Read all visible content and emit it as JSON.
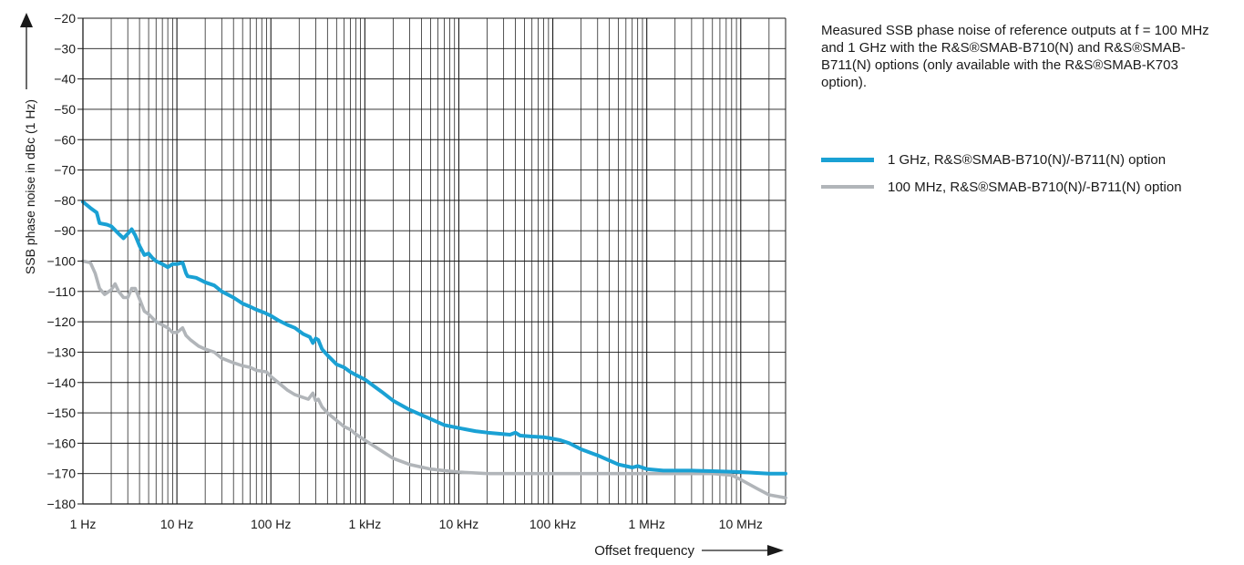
{
  "caption": "Measured SSB phase noise of reference outputs at f = 100 MHz and 1 GHz with the R&S®SMAB-B710(N) and R&S®SMAB-B711(N) options (only available with the R&S®SMAB-K703 option).",
  "chart_data": {
    "type": "line",
    "title": "",
    "xlabel": "Offset frequency",
    "ylabel": "SSB phase noise in dBc (1 Hz)",
    "x_scale": "log",
    "xlim": [
      1,
      30000000
    ],
    "ylim": [
      -180,
      -20
    ],
    "grid": true,
    "legend_position": "right",
    "x_ticks": [
      {
        "value": 1,
        "label": "1 Hz"
      },
      {
        "value": 10,
        "label": "10 Hz"
      },
      {
        "value": 100,
        "label": "100 Hz"
      },
      {
        "value": 1000,
        "label": "1 kHz"
      },
      {
        "value": 10000,
        "label": "10 kHz"
      },
      {
        "value": 100000,
        "label": "100 kHz"
      },
      {
        "value": 1000000,
        "label": "1 MHz"
      },
      {
        "value": 10000000,
        "label": "10 MHz"
      }
    ],
    "y_ticks": [
      {
        "value": -20,
        "label": "−20"
      },
      {
        "value": -30,
        "label": "−30"
      },
      {
        "value": -40,
        "label": "−40"
      },
      {
        "value": -50,
        "label": "−50"
      },
      {
        "value": -60,
        "label": "−60"
      },
      {
        "value": -70,
        "label": "−70"
      },
      {
        "value": -80,
        "label": "−80"
      },
      {
        "value": -90,
        "label": "−90"
      },
      {
        "value": -100,
        "label": "−100"
      },
      {
        "value": -110,
        "label": "−110"
      },
      {
        "value": -120,
        "label": "−120"
      },
      {
        "value": -130,
        "label": "−130"
      },
      {
        "value": -140,
        "label": "−140"
      },
      {
        "value": -150,
        "label": "−150"
      },
      {
        "value": -160,
        "label": "−160"
      },
      {
        "value": -170,
        "label": "−170"
      },
      {
        "value": -180,
        "label": "−180"
      }
    ],
    "series": [
      {
        "name": "1 GHz, R&S®SMAB-B710(N)/-B711(N) option",
        "color": "#1aa1d4",
        "x": [
          1,
          1.2,
          1.4,
          1.5,
          1.8,
          2,
          2.4,
          2.7,
          3,
          3.3,
          3.6,
          4,
          4.5,
          5,
          5.5,
          6,
          7,
          8,
          9,
          10,
          11.5,
          12.5,
          13,
          16,
          20,
          25,
          30,
          40,
          50,
          60,
          70,
          85,
          100,
          120,
          150,
          180,
          220,
          260,
          280,
          300,
          320,
          350,
          400,
          500,
          600,
          700,
          800,
          1000,
          1500,
          2000,
          3000,
          5000,
          7000,
          10000,
          15000,
          20000,
          30000,
          35000,
          40000,
          45000,
          60000,
          80000,
          100000,
          120000,
          150000,
          200000,
          300000,
          500000,
          700000,
          800000,
          1000000,
          1500000,
          2000000,
          3000000,
          5000000,
          10000000,
          20000000,
          30000000
        ],
        "y": [
          -80.5,
          -82.5,
          -84,
          -87.5,
          -88,
          -88.5,
          -91,
          -92.5,
          -91,
          -89.5,
          -91.5,
          -95,
          -98,
          -97.5,
          -99,
          -100,
          -101,
          -102,
          -101,
          -101,
          -100.5,
          -104,
          -105,
          -105.5,
          -107,
          -108,
          -110,
          -112,
          -114,
          -115,
          -116,
          -117,
          -118,
          -119.5,
          -121,
          -122,
          -124,
          -125,
          -127,
          -125.5,
          -126,
          -129,
          -131,
          -134,
          -135,
          -136.5,
          -137.5,
          -139,
          -143,
          -146,
          -149,
          -152,
          -154,
          -155,
          -156,
          -156.5,
          -157,
          -157.2,
          -156.5,
          -157.5,
          -157.8,
          -158,
          -158.5,
          -159,
          -160,
          -162,
          -164,
          -167,
          -168,
          -167.5,
          -168.5,
          -169,
          -169,
          -169,
          -169.2,
          -169.5,
          -170,
          -170
        ]
      },
      {
        "name": "100 MHz, R&S®SMAB-B710(N)/-B711(N) option",
        "color": "#b1b5b9",
        "x": [
          1,
          1.2,
          1.35,
          1.5,
          1.7,
          2,
          2.2,
          2.4,
          2.7,
          3,
          3.3,
          3.6,
          4,
          4.5,
          5,
          6,
          7,
          8,
          9,
          10,
          11.5,
          12.5,
          14,
          17,
          20,
          25,
          30,
          40,
          50,
          60,
          70,
          90,
          100,
          120,
          150,
          180,
          200,
          250,
          280,
          300,
          320,
          350,
          400,
          500,
          600,
          700,
          800,
          1000,
          1500,
          2000,
          3000,
          5000,
          7000,
          10000,
          20000,
          50000,
          100000,
          500000,
          1000000,
          2000000,
          5000000,
          8000000,
          10000000,
          15000000,
          20000000,
          30000000
        ],
        "y": [
          -100,
          -100.5,
          -104,
          -109,
          -111,
          -109.5,
          -107.5,
          -110,
          -112,
          -112,
          -109,
          -109,
          -112.5,
          -116.5,
          -117.5,
          -120,
          -121,
          -122,
          -123.5,
          -123.5,
          -122,
          -124.5,
          -126,
          -128,
          -129,
          -130,
          -132,
          -133.5,
          -134.5,
          -135,
          -136,
          -136.5,
          -138,
          -140,
          -142.5,
          -144,
          -144.5,
          -145.5,
          -143.5,
          -146,
          -145.5,
          -148,
          -150,
          -152.5,
          -154.5,
          -155.5,
          -157,
          -159,
          -162.5,
          -165,
          -167,
          -168.5,
          -169,
          -169.5,
          -170,
          -170,
          -170,
          -170,
          -170,
          -170,
          -170,
          -170.5,
          -172,
          -175,
          -177,
          -178
        ]
      }
    ]
  }
}
